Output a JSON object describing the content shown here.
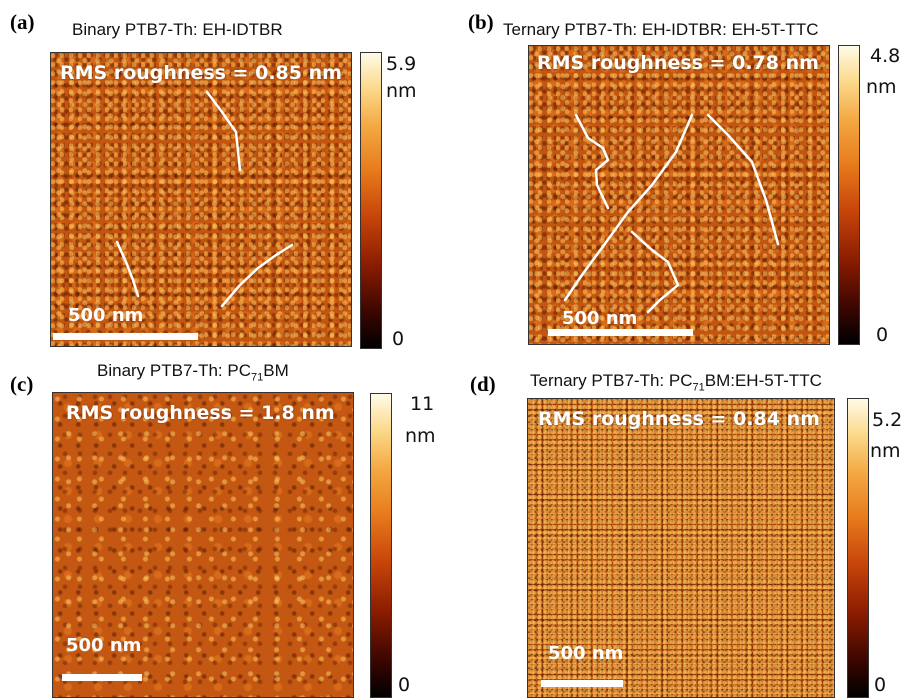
{
  "panels": {
    "a": {
      "label": "(a)",
      "title": "Binary PTB7-Th: EH-IDTBR",
      "rms": "RMS roughness = 0.85 nm",
      "scale_bar": "500 nm",
      "colorbar": {
        "max": "5.9",
        "unit": "nm",
        "min": "0"
      }
    },
    "b": {
      "label": "(b)",
      "title": "Ternary  PTB7-Th: EH-IDTBR: EH-5T-TTC",
      "rms": "RMS roughness = 0.78 nm",
      "scale_bar": "500 nm",
      "colorbar": {
        "max": "4.8",
        "unit": "nm",
        "min": "0"
      }
    },
    "c": {
      "label": "(c)",
      "title_pre": "Binary PTB7-Th: PC",
      "title_sub": "71",
      "title_post": "BM",
      "rms": "RMS roughness = 1.8 nm",
      "scale_bar": "500 nm",
      "colorbar": {
        "max": "11",
        "unit": "nm",
        "min": "0"
      }
    },
    "d": {
      "label": "(d)",
      "title_pre": "Ternary PTB7-Th: PC",
      "title_sub": "71",
      "title_post": "BM:EH-5T-TTC",
      "rms": "RMS roughness = 0.84 nm",
      "scale_bar": "500 nm",
      "colorbar": {
        "max": "5.2",
        "unit": "nm",
        "min": "0"
      }
    }
  },
  "colors": {
    "afm_base": "#c25510",
    "text_overlay": "#ffffff",
    "trace_lines": "#ffffff"
  }
}
